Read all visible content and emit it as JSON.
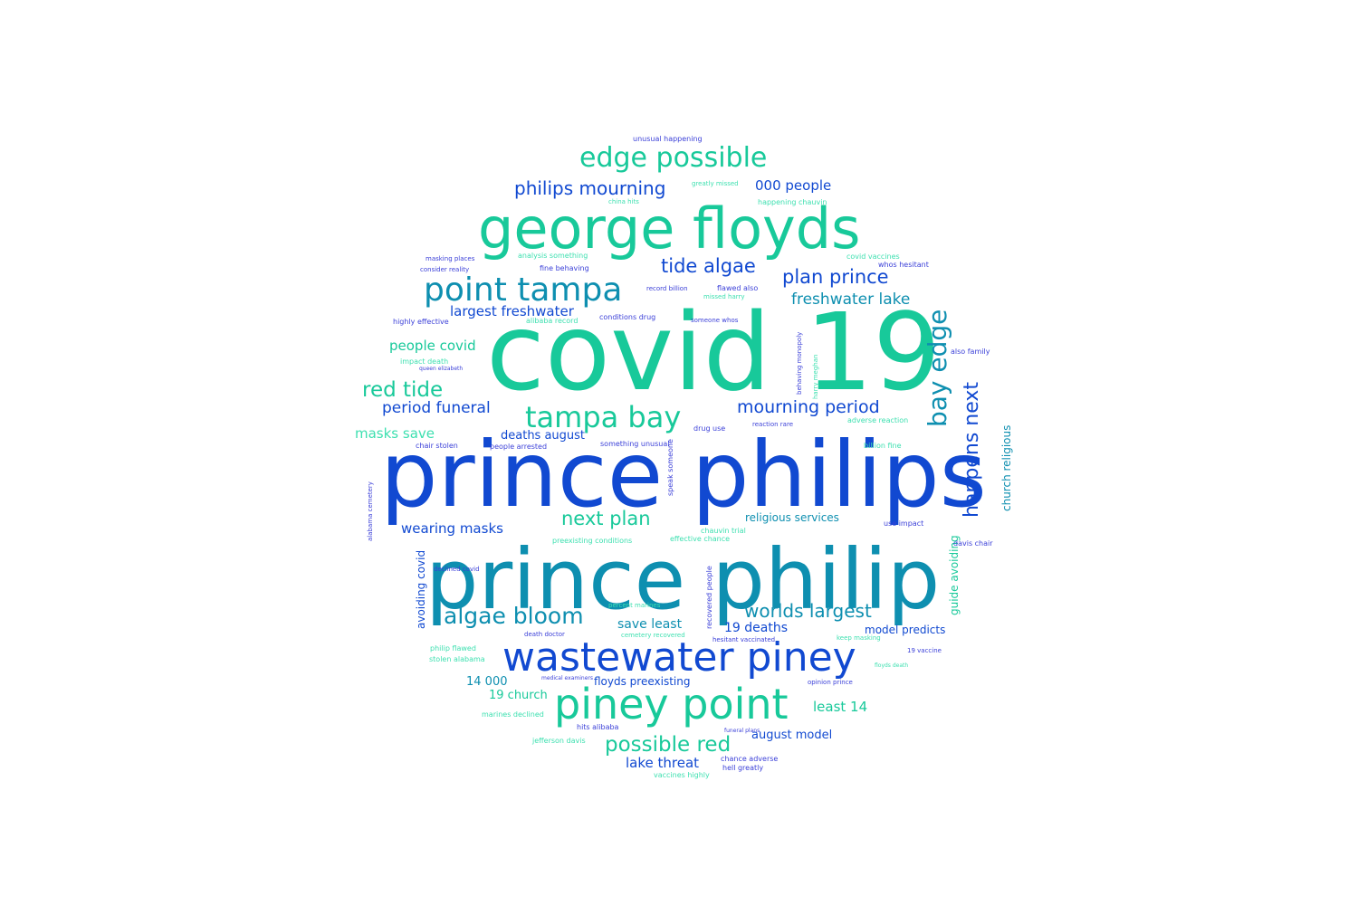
{
  "cloud": {
    "colors": {
      "green": "#18c99a",
      "teal": "#0e8fb0",
      "blue": "#1149d1",
      "mint": "#3ee0b0",
      "violet": "#3a3fd8"
    },
    "words": [
      {
        "text": "covid 19",
        "c": "green"
      },
      {
        "text": "prince philips",
        "c": "blue"
      },
      {
        "text": "prince philip",
        "c": "teal"
      },
      {
        "text": "george floyds",
        "c": "green"
      },
      {
        "text": "wastewater piney",
        "c": "blue"
      },
      {
        "text": "piney point",
        "c": "green"
      },
      {
        "text": "point tampa",
        "c": "teal"
      },
      {
        "text": "tampa bay",
        "c": "green"
      },
      {
        "text": "edge possible",
        "c": "green"
      },
      {
        "text": "bay edge",
        "c": "teal"
      },
      {
        "text": "happens next",
        "c": "blue"
      },
      {
        "text": "algae bloom",
        "c": "teal"
      },
      {
        "text": "possible red",
        "c": "green"
      },
      {
        "text": "red tide",
        "c": "green"
      },
      {
        "text": "tide algae",
        "c": "blue"
      },
      {
        "text": "plan prince",
        "c": "blue"
      },
      {
        "text": "philips mourning",
        "c": "blue"
      },
      {
        "text": "next plan",
        "c": "green"
      },
      {
        "text": "worlds largest",
        "c": "teal"
      },
      {
        "text": "mourning period",
        "c": "blue"
      },
      {
        "text": "period funeral",
        "c": "blue"
      },
      {
        "text": "freshwater lake",
        "c": "teal"
      },
      {
        "text": "000 people",
        "c": "blue"
      },
      {
        "text": "largest freshwater",
        "c": "blue"
      },
      {
        "text": "people covid",
        "c": "green"
      },
      {
        "text": "wearing masks",
        "c": "blue"
      },
      {
        "text": "masks save",
        "c": "mint"
      },
      {
        "text": "deaths august",
        "c": "blue"
      },
      {
        "text": "save least",
        "c": "teal"
      },
      {
        "text": "19 deaths",
        "c": "blue"
      },
      {
        "text": "model predicts",
        "c": "blue"
      },
      {
        "text": "lake threat",
        "c": "blue"
      },
      {
        "text": "august model",
        "c": "blue"
      },
      {
        "text": "least 14",
        "c": "green"
      },
      {
        "text": "14 000",
        "c": "teal"
      },
      {
        "text": "19 church",
        "c": "green"
      },
      {
        "text": "church religious",
        "c": "teal"
      },
      {
        "text": "religious services",
        "c": "teal"
      },
      {
        "text": "avoiding covid",
        "c": "blue"
      },
      {
        "text": "guide avoiding",
        "c": "green"
      },
      {
        "text": "floyds preexisting",
        "c": "blue"
      },
      {
        "text": "unusual happening",
        "c": "violet"
      },
      {
        "text": "covid vaccines",
        "c": "mint"
      },
      {
        "text": "whos hesitant",
        "c": "violet"
      },
      {
        "text": "happening chauvin",
        "c": "mint"
      },
      {
        "text": "analysis something",
        "c": "mint"
      },
      {
        "text": "fine behaving",
        "c": "violet"
      },
      {
        "text": "record billion",
        "c": "violet"
      },
      {
        "text": "flawed also",
        "c": "violet"
      },
      {
        "text": "missed harry",
        "c": "mint"
      },
      {
        "text": "someone whos",
        "c": "violet"
      },
      {
        "text": "alibaba record",
        "c": "mint"
      },
      {
        "text": "conditions drug",
        "c": "violet"
      },
      {
        "text": "highly effective",
        "c": "violet"
      },
      {
        "text": "impact death",
        "c": "mint"
      },
      {
        "text": "also family",
        "c": "violet"
      },
      {
        "text": "behaving monopoly",
        "c": "violet"
      },
      {
        "text": "harry meghan",
        "c": "mint"
      },
      {
        "text": "reaction rare",
        "c": "violet"
      },
      {
        "text": "adverse reaction",
        "c": "mint"
      },
      {
        "text": "drug use",
        "c": "violet"
      },
      {
        "text": "chair stolen",
        "c": "violet"
      },
      {
        "text": "people arrested",
        "c": "violet"
      },
      {
        "text": "something unusual",
        "c": "violet"
      },
      {
        "text": "billion fine",
        "c": "mint"
      },
      {
        "text": "speak someone",
        "c": "violet"
      },
      {
        "text": "chauvin trial",
        "c": "mint"
      },
      {
        "text": "effective chance",
        "c": "mint"
      },
      {
        "text": "preexisting conditions",
        "c": "mint"
      },
      {
        "text": "use impact",
        "c": "violet"
      },
      {
        "text": "davis chair",
        "c": "violet"
      },
      {
        "text": "recovered people",
        "c": "violet"
      },
      {
        "text": "alabama cemetery",
        "c": "violet"
      },
      {
        "text": "declined covid",
        "c": "violet"
      },
      {
        "text": "death doctor",
        "c": "violet"
      },
      {
        "text": "cemetery recovered",
        "c": "mint"
      },
      {
        "text": "hesitant vaccinated",
        "c": "violet"
      },
      {
        "text": "philip flawed",
        "c": "mint"
      },
      {
        "text": "stolen alabama",
        "c": "mint"
      },
      {
        "text": "percent marines",
        "c": "mint"
      },
      {
        "text": "opinion prince",
        "c": "violet"
      },
      {
        "text": "marines declined",
        "c": "mint"
      },
      {
        "text": "hits alibaba",
        "c": "violet"
      },
      {
        "text": "jefferson davis",
        "c": "mint"
      },
      {
        "text": "chance adverse",
        "c": "violet"
      },
      {
        "text": "hell greatly",
        "c": "violet"
      },
      {
        "text": "vaccines highly",
        "c": "mint"
      },
      {
        "text": "greatly missed",
        "c": "mint"
      },
      {
        "text": "china hits",
        "c": "mint"
      },
      {
        "text": "keep masking",
        "c": "mint"
      },
      {
        "text": "19 vaccine",
        "c": "violet"
      },
      {
        "text": "masking places",
        "c": "violet"
      },
      {
        "text": "consider reality",
        "c": "violet"
      },
      {
        "text": "medical examiners",
        "c": "violet"
      },
      {
        "text": "floyds death",
        "c": "mint"
      },
      {
        "text": "queen elizabeth",
        "c": "violet"
      },
      {
        "text": "funeral plans",
        "c": "violet"
      }
    ]
  }
}
